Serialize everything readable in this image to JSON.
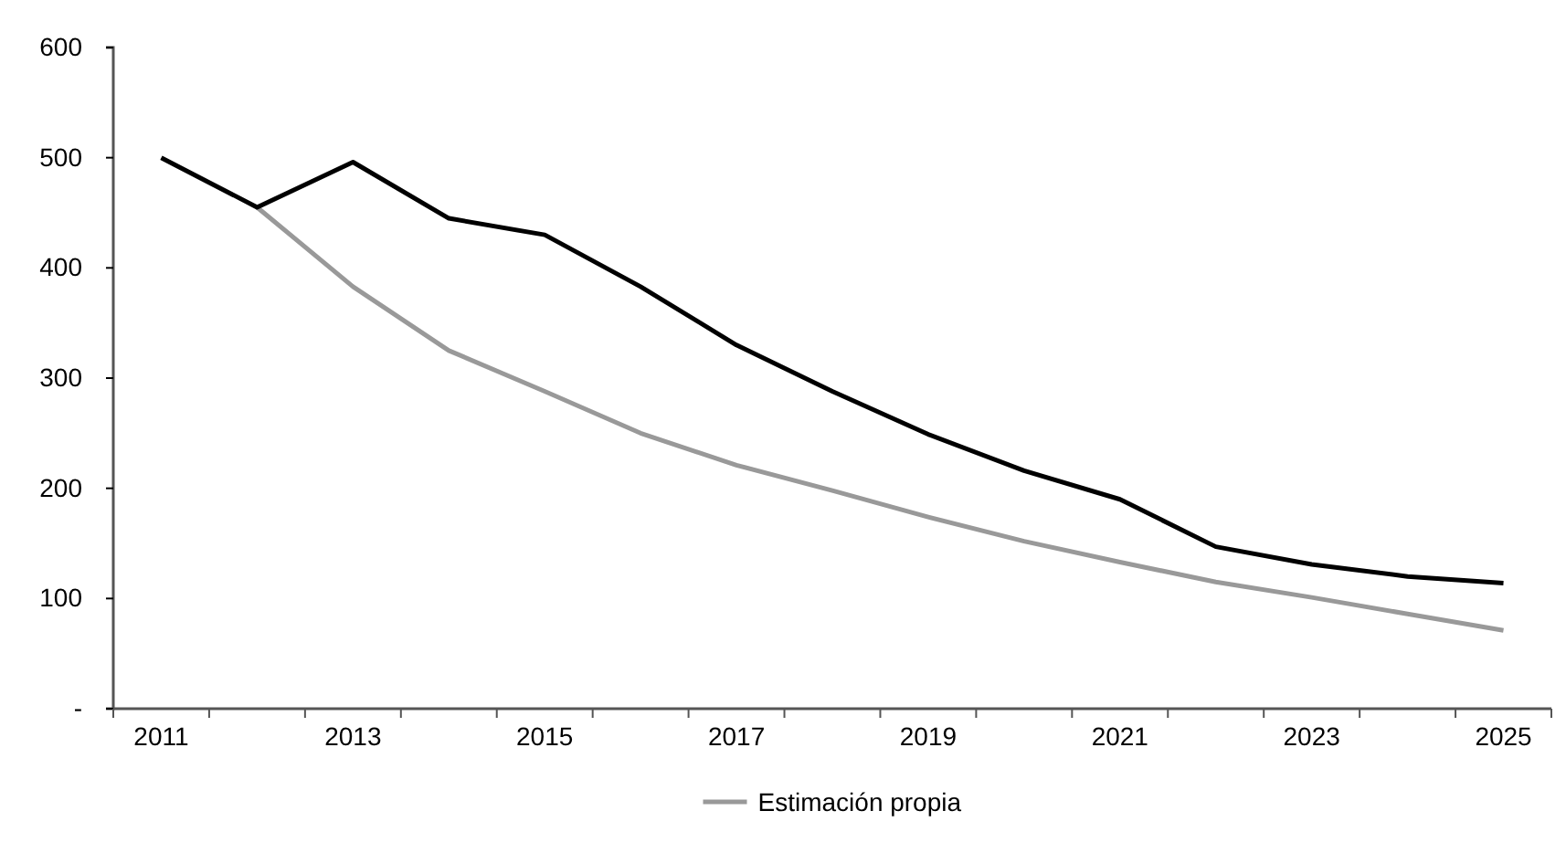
{
  "chart_data": {
    "type": "line",
    "categories": [
      "2011",
      null,
      "2013",
      null,
      "2015",
      null,
      "2017",
      null,
      "2019",
      null,
      "2021",
      null,
      "2023",
      null,
      "2025"
    ],
    "series": [
      {
        "name": "Estimación propia",
        "color": "#999999",
        "values": [
          null,
          455,
          383,
          325,
          288,
          250,
          221,
          198,
          174,
          152,
          133,
          115,
          101,
          86,
          71
        ]
      },
      {
        "color": "#000000",
        "values": [
          500,
          455,
          496,
          445,
          430,
          383,
          330,
          288,
          249,
          216,
          190,
          147,
          131,
          120,
          114
        ]
      }
    ],
    "ylim": [
      0,
      600
    ],
    "yticks": [
      {
        "value": 0,
        "label": "-"
      },
      100,
      200,
      300,
      400,
      500,
      600
    ],
    "grid": false,
    "legend": "bottom",
    "marker": "none",
    "line_style": "solid"
  }
}
